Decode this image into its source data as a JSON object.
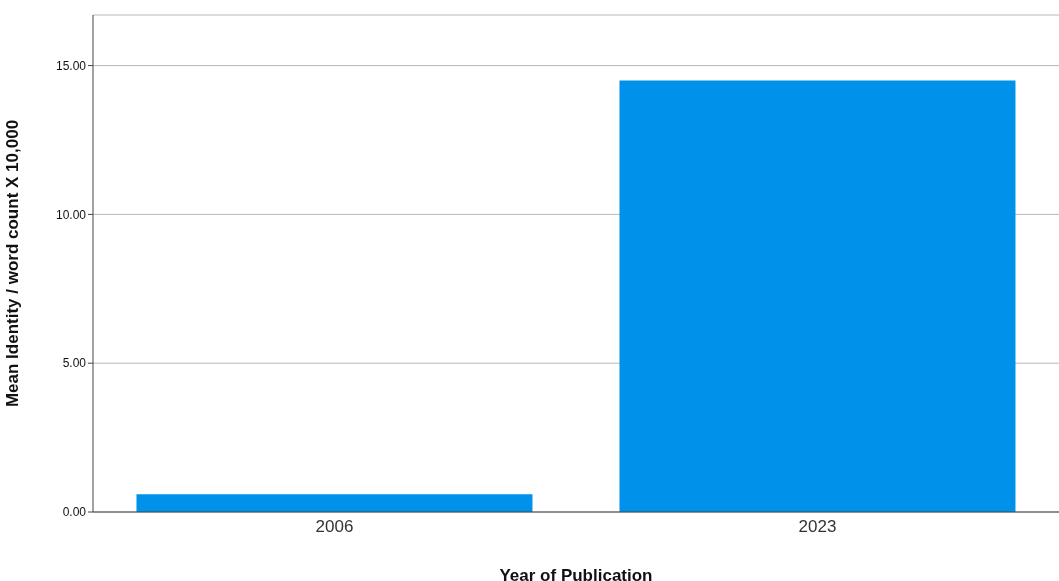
{
  "chart_data": {
    "type": "bar",
    "xlabel": "Year of Publication",
    "ylabel": "Mean Identity / word count X 10,000",
    "categories": [
      "2006",
      "2023"
    ],
    "values": [
      0.6,
      14.5
    ],
    "color": "#0091ea",
    "ylim": [
      0,
      16.7
    ],
    "yticks": [
      {
        "value": 0,
        "label": "0.00"
      },
      {
        "value": 5,
        "label": "5.00"
      },
      {
        "value": 10,
        "label": "10.00"
      },
      {
        "value": 15,
        "label": "15.00"
      }
    ],
    "grid": "y",
    "legend": false
  }
}
